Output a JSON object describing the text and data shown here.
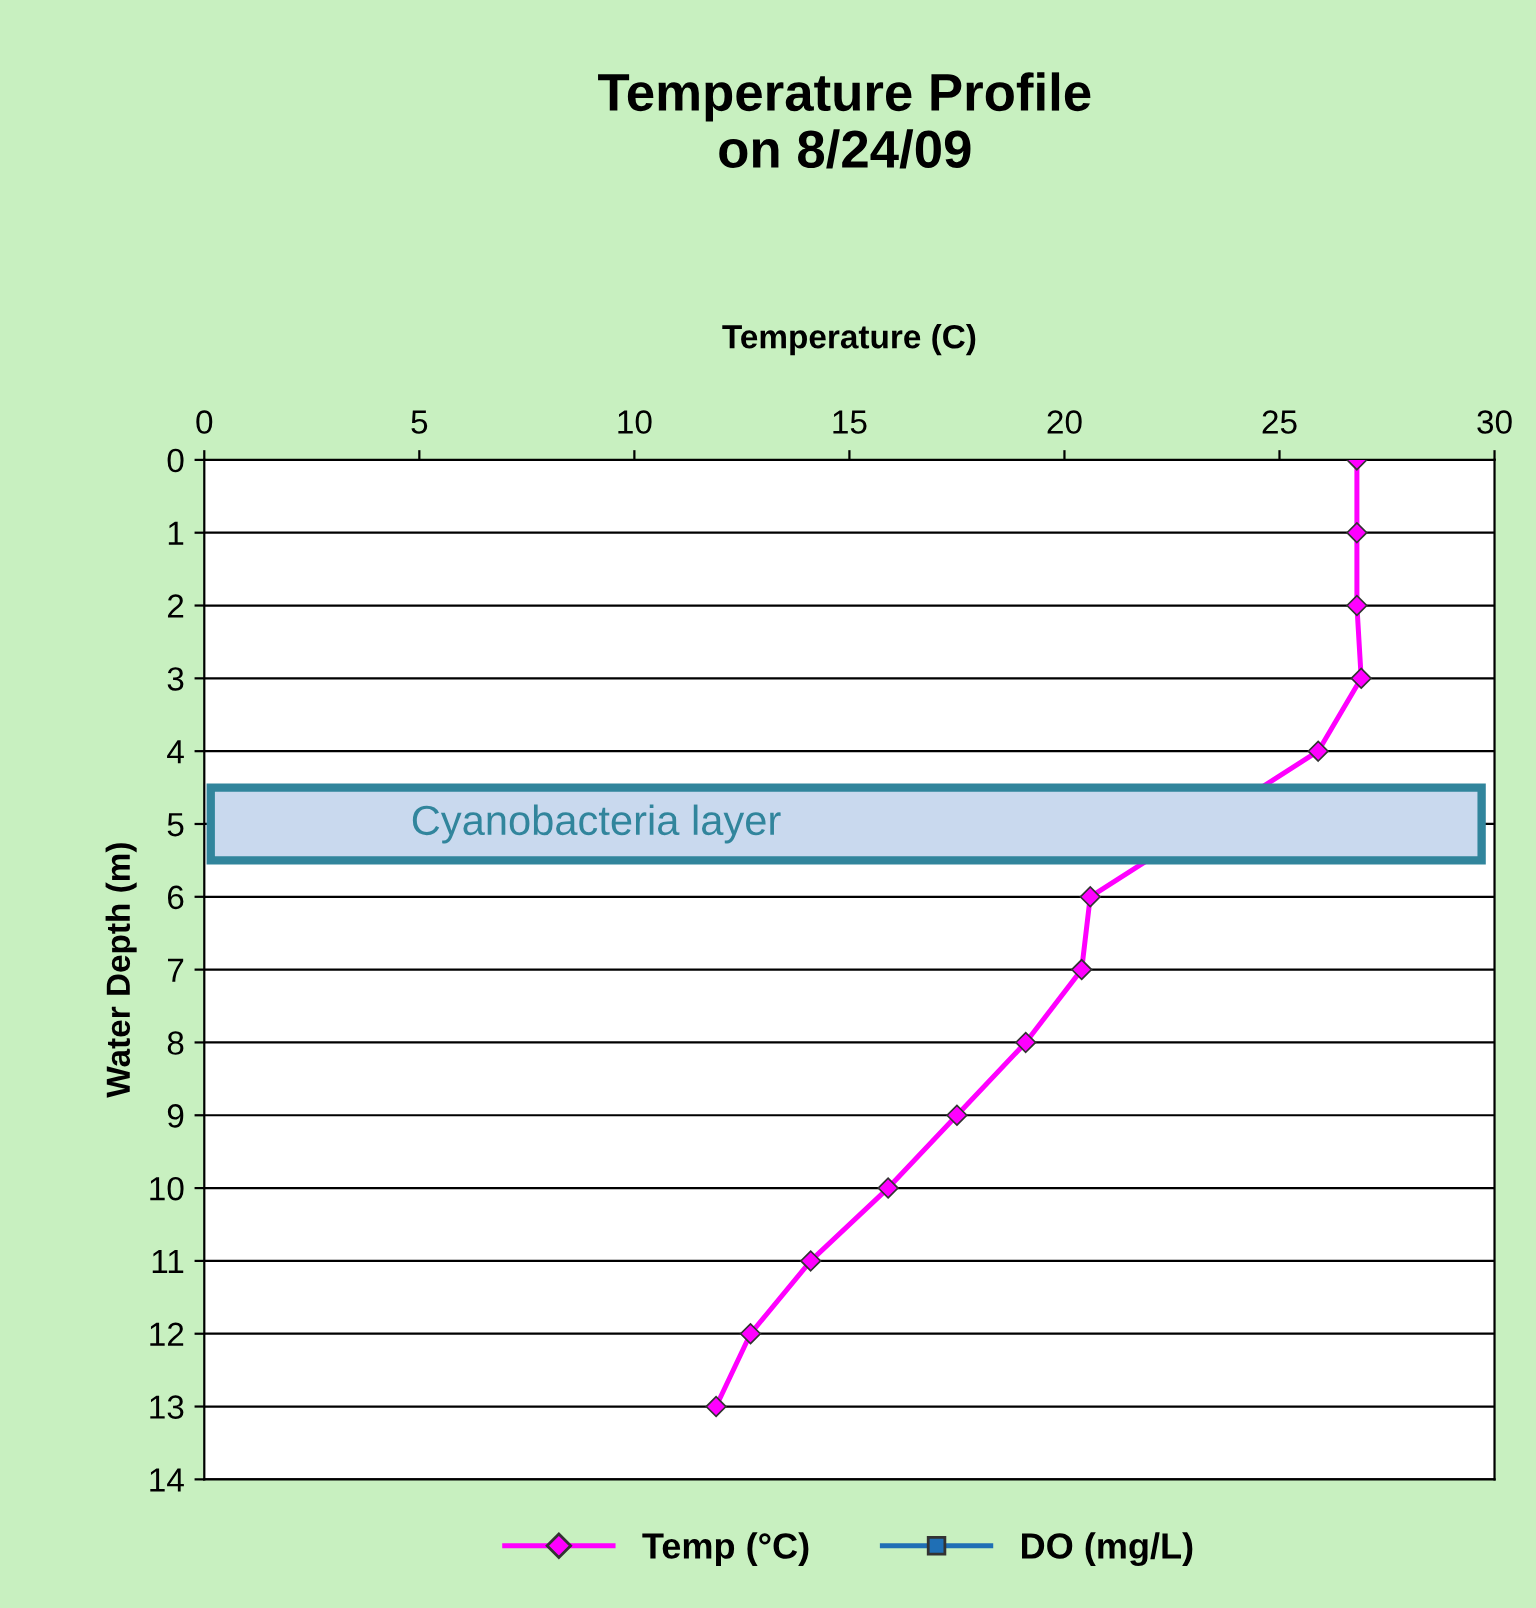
{
  "chart_data": {
    "type": "line",
    "title": "Temperature Profile\non 8/24/09",
    "xlabel": "Temperature (C)",
    "ylabel": "Water Depth (m)",
    "series": [
      {
        "name": "Temp (°C)",
        "color": "#ff00ff",
        "marker": "diamond",
        "x": [
          26.8,
          26.8,
          26.8,
          26.9,
          25.9,
          20.6,
          20.4,
          19.1,
          17.5,
          15.9,
          14.1,
          12.7,
          11.9
        ],
        "values": [
          0,
          1,
          2,
          3,
          4,
          6,
          7,
          8,
          9,
          10,
          11,
          12,
          13
        ]
      },
      {
        "name": "DO (mg/L)",
        "color": "#1f6fb5",
        "marker": "square"
      }
    ],
    "xlim": [
      0,
      30
    ],
    "xticks": [
      0,
      5,
      10,
      15,
      20,
      25,
      30
    ],
    "ylim": [
      14,
      0
    ],
    "yticks": [
      0,
      1,
      2,
      3,
      4,
      5,
      6,
      7,
      8,
      9,
      10,
      11,
      12,
      13,
      14
    ],
    "bands": [
      {
        "axis": "y",
        "from": 4.5,
        "to": 5.5,
        "label": "Cyanobacteria layer",
        "color": "#c9d9ee"
      }
    ],
    "grid": "y",
    "legend": "bottom",
    "line_style": "solid"
  }
}
